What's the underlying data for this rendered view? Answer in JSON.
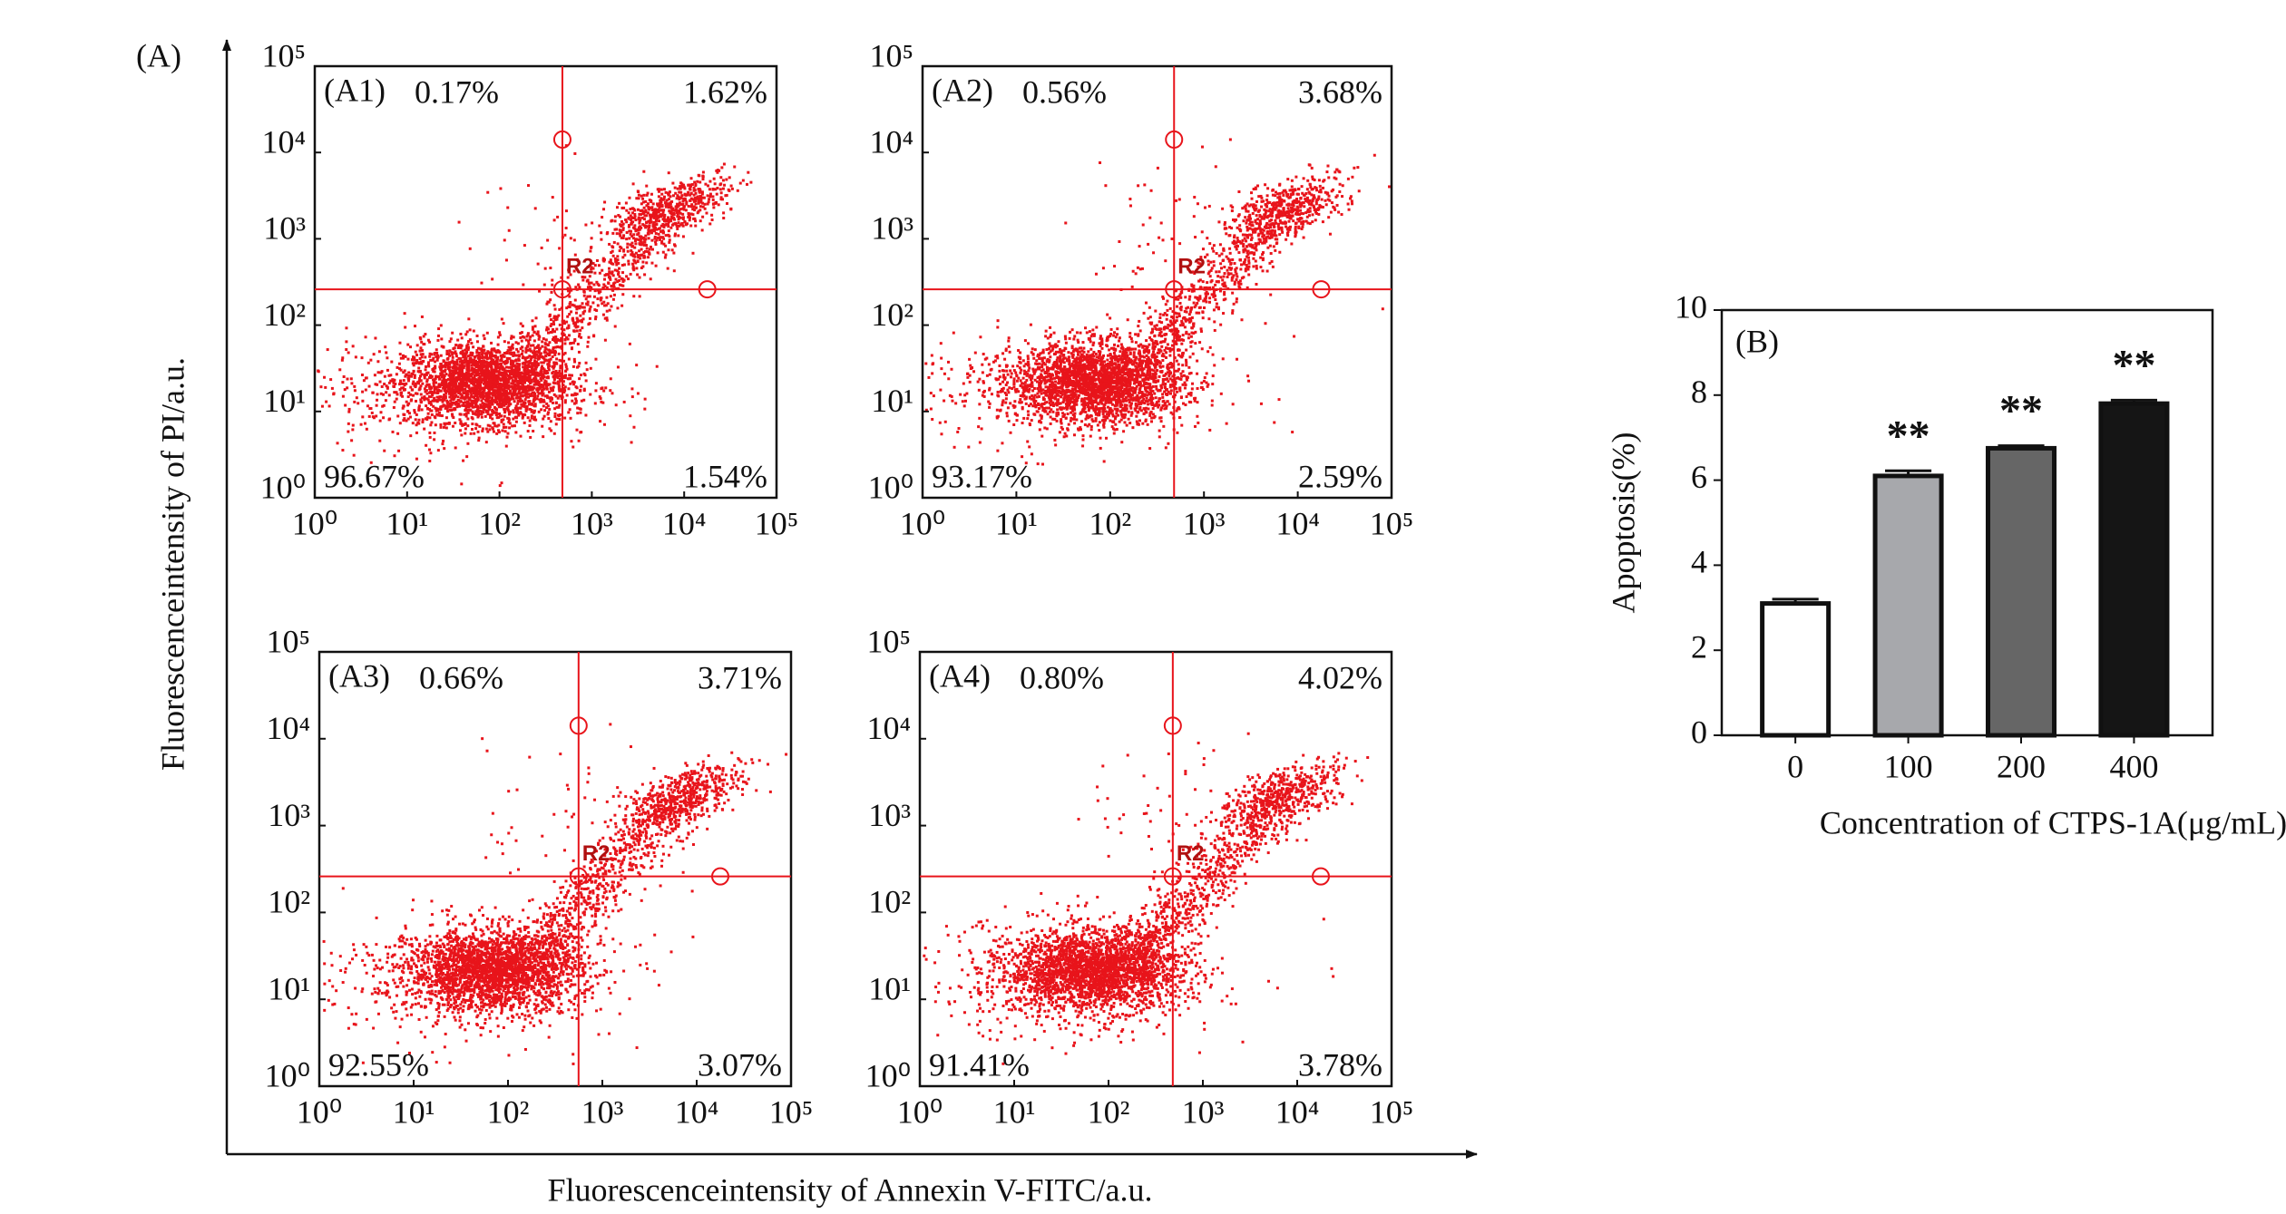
{
  "figure": {
    "panel_label": "(A)",
    "xlabel": "Fluorescenceintensity of Annexin V-FITC/a.u.",
    "ylabel": "Fluorescenceintensity of PI/a.u."
  },
  "chart_data": [
    {
      "type": "quadrant",
      "title": "(A1)",
      "gate_label": "R2",
      "log_x": true,
      "log_y": true,
      "color": "#e8141b",
      "quadrants": [
        "upper-left",
        "upper-right",
        "lower-left",
        "lower-right"
      ],
      "values": [
        0.17,
        1.62,
        96.67,
        1.54
      ],
      "value_labels": [
        "0.17%",
        "1.62%",
        "96.67%",
        "1.54%"
      ],
      "gate": {
        "x": 480,
        "y": 260
      },
      "xlim": [
        1,
        100000
      ],
      "ylim": [
        1,
        100000
      ],
      "xticks": [
        {
          "value": 1,
          "label": "10⁰"
        },
        {
          "value": 10,
          "label": "10¹"
        },
        {
          "value": 100,
          "label": "10²"
        },
        {
          "value": 1000,
          "label": "10³"
        },
        {
          "value": 10000,
          "label": "10⁴"
        },
        {
          "value": 100000,
          "label": "10⁵"
        }
      ],
      "yticks": [
        {
          "value": 1,
          "label": "10⁰"
        },
        {
          "value": 10,
          "label": "10¹"
        },
        {
          "value": 100,
          "label": "10²"
        },
        {
          "value": 1000,
          "label": "10³"
        },
        {
          "value": 10000,
          "label": "10⁴"
        },
        {
          "value": 100000,
          "label": "10⁵"
        }
      ]
    },
    {
      "type": "quadrant",
      "title": "(A2)",
      "gate_label": "R2",
      "log_x": true,
      "log_y": true,
      "color": "#e8141b",
      "quadrants": [
        "upper-left",
        "upper-right",
        "lower-left",
        "lower-right"
      ],
      "values": [
        0.56,
        3.68,
        93.17,
        2.59
      ],
      "value_labels": [
        "0.56%",
        "3.68%",
        "93.17%",
        "2.59%"
      ],
      "gate": {
        "x": 480,
        "y": 260
      },
      "xlim": [
        1,
        100000
      ],
      "ylim": [
        1,
        100000
      ],
      "xticks": [
        {
          "value": 1,
          "label": "10⁰"
        },
        {
          "value": 10,
          "label": "10¹"
        },
        {
          "value": 100,
          "label": "10²"
        },
        {
          "value": 1000,
          "label": "10³"
        },
        {
          "value": 10000,
          "label": "10⁴"
        },
        {
          "value": 100000,
          "label": "10⁵"
        }
      ],
      "yticks": [
        {
          "value": 1,
          "label": "10⁰"
        },
        {
          "value": 10,
          "label": "10¹"
        },
        {
          "value": 100,
          "label": "10²"
        },
        {
          "value": 1000,
          "label": "10³"
        },
        {
          "value": 10000,
          "label": "10⁴"
        },
        {
          "value": 100000,
          "label": "10⁵"
        }
      ]
    },
    {
      "type": "quadrant",
      "title": "(A3)",
      "gate_label": "R2",
      "log_x": true,
      "log_y": true,
      "color": "#e8141b",
      "quadrants": [
        "upper-left",
        "upper-right",
        "lower-left",
        "lower-right"
      ],
      "values": [
        0.66,
        3.71,
        92.55,
        3.07
      ],
      "value_labels": [
        "0.66%",
        "3.71%",
        "92.55%",
        "3.07%"
      ],
      "gate": {
        "x": 560,
        "y": 260
      },
      "xlim": [
        1,
        100000
      ],
      "ylim": [
        1,
        100000
      ],
      "xticks": [
        {
          "value": 1,
          "label": "10⁰"
        },
        {
          "value": 10,
          "label": "10¹"
        },
        {
          "value": 100,
          "label": "10²"
        },
        {
          "value": 1000,
          "label": "10³"
        },
        {
          "value": 10000,
          "label": "10⁴"
        },
        {
          "value": 100000,
          "label": "10⁵"
        }
      ],
      "yticks": [
        {
          "value": 1,
          "label": "10⁰"
        },
        {
          "value": 10,
          "label": "10¹"
        },
        {
          "value": 100,
          "label": "10²"
        },
        {
          "value": 1000,
          "label": "10³"
        },
        {
          "value": 10000,
          "label": "10⁴"
        },
        {
          "value": 100000,
          "label": "10⁵"
        }
      ]
    },
    {
      "type": "quadrant",
      "title": "(A4)",
      "gate_label": "R2",
      "log_x": true,
      "log_y": true,
      "color": "#e8141b",
      "quadrants": [
        "upper-left",
        "upper-right",
        "lower-left",
        "lower-right"
      ],
      "values": [
        0.8,
        4.02,
        91.41,
        3.78
      ],
      "value_labels": [
        "0.80%",
        "4.02%",
        "91.41%",
        "3.78%"
      ],
      "gate": {
        "x": 480,
        "y": 260
      },
      "xlim": [
        1,
        100000
      ],
      "ylim": [
        1,
        100000
      ],
      "xticks": [
        {
          "value": 1,
          "label": "10⁰"
        },
        {
          "value": 10,
          "label": "10¹"
        },
        {
          "value": 100,
          "label": "10²"
        },
        {
          "value": 1000,
          "label": "10³"
        },
        {
          "value": 10000,
          "label": "10⁴"
        },
        {
          "value": 100000,
          "label": "10⁵"
        }
      ],
      "yticks": [
        {
          "value": 1,
          "label": "10⁰"
        },
        {
          "value": 10,
          "label": "10¹"
        },
        {
          "value": 100,
          "label": "10²"
        },
        {
          "value": 1000,
          "label": "10³"
        },
        {
          "value": 10000,
          "label": "10⁴"
        },
        {
          "value": 100000,
          "label": "10⁵"
        }
      ]
    },
    {
      "type": "bar",
      "title": "(B)",
      "xlabel": "Concentration of CTPS-1A(μg/mL)",
      "ylabel": "Apoptosis(%)",
      "categories": [
        "0",
        "100",
        "200",
        "400"
      ],
      "values": [
        3.1,
        6.1,
        6.75,
        7.8
      ],
      "errors": [
        0.1,
        0.12,
        0.06,
        0.08
      ],
      "colors": [
        "#ffffff",
        "#a7a8ac",
        "#666666",
        "#151515"
      ],
      "annotations": [
        null,
        "**",
        "**",
        "**"
      ],
      "ylim": [
        0,
        10
      ],
      "yticks": [
        0,
        2,
        4,
        6,
        8,
        10
      ]
    }
  ]
}
